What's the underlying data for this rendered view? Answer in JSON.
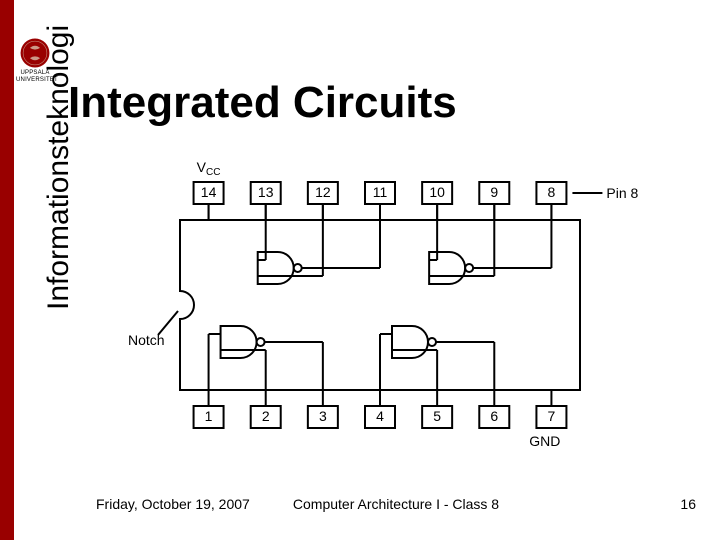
{
  "title": "Integrated Circuits",
  "sidebar_text": "Informationsteknologi",
  "logo_label": "UPPSALA UNIVERSITET",
  "footer": {
    "date": "Friday, October 19, 2007",
    "course": "Computer Architecture I - Class 8",
    "page": "16"
  },
  "colors": {
    "accent": "#990000",
    "line": "#000000",
    "bg": "#ffffff"
  },
  "diagram": {
    "type": "ic-schematic",
    "vcc_label": "V",
    "vcc_sub": "CC",
    "pin8_label": "Pin 8",
    "notch_label": "Notch",
    "gnd_label": "GND",
    "top_pins": [
      "14",
      "13",
      "12",
      "11",
      "10",
      "9",
      "8"
    ],
    "bottom_pins": [
      "1",
      "2",
      "3",
      "4",
      "5",
      "6",
      "7"
    ],
    "stroke_width": 2,
    "font_size": 14
  }
}
